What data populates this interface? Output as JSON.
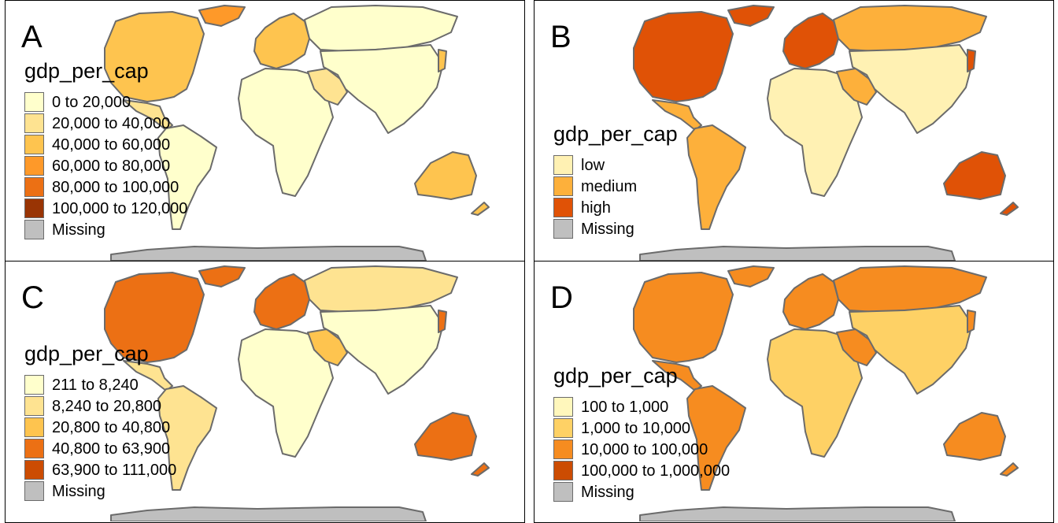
{
  "panels": [
    {
      "letter": "A",
      "legend": {
        "title": "gdp_per_cap",
        "items": [
          {
            "label": "0 to 20,000",
            "color": "#ffffcc"
          },
          {
            "label": "20,000 to 40,000",
            "color": "#fee391"
          },
          {
            "label": "40,000 to 60,000",
            "color": "#fec44f"
          },
          {
            "label": "60,000 to 80,000",
            "color": "#fe9929"
          },
          {
            "label": "80,000 to 100,000",
            "color": "#ec7014"
          },
          {
            "label": "100,000 to 120,000",
            "color": "#993404"
          },
          {
            "label": "Missing",
            "color": "#bfbfbf"
          }
        ]
      },
      "regions": {
        "north_america": "#fec44f",
        "greenland": "#fe9929",
        "mexico": "#fee391",
        "south_america": "#ffffcc",
        "europe": "#fec44f",
        "russia": "#ffffcc",
        "africa": "#ffffcc",
        "middle_east": "#fee391",
        "asia": "#ffffcc",
        "japan": "#fec44f",
        "australia": "#fec44f",
        "new_zealand": "#fec44f",
        "antarctica": "#bfbfbf"
      }
    },
    {
      "letter": "B",
      "legend": {
        "title": "gdp_per_cap",
        "items": [
          {
            "label": "low",
            "color": "#fff1b3"
          },
          {
            "label": "medium",
            "color": "#fdb03b"
          },
          {
            "label": "high",
            "color": "#e05206"
          },
          {
            "label": "Missing",
            "color": "#bfbfbf"
          }
        ]
      },
      "regions": {
        "north_america": "#e05206",
        "greenland": "#e05206",
        "mexico": "#fdb03b",
        "south_america": "#fdb03b",
        "europe": "#e05206",
        "russia": "#fdb03b",
        "africa": "#fff1b3",
        "middle_east": "#fdb03b",
        "asia": "#fff1b3",
        "japan": "#e05206",
        "australia": "#e05206",
        "new_zealand": "#e05206",
        "antarctica": "#bfbfbf"
      }
    },
    {
      "letter": "C",
      "legend": {
        "title": "gdp_per_cap",
        "items": [
          {
            "label": "211 to 8,240",
            "color": "#ffffcc"
          },
          {
            "label": "8,240 to 20,800",
            "color": "#fee391"
          },
          {
            "label": "20,800 to 40,800",
            "color": "#fec44f"
          },
          {
            "label": "40,800 to 63,900",
            "color": "#ec7014"
          },
          {
            "label": "63,900 to 111,000",
            "color": "#cc4c02"
          },
          {
            "label": "Missing",
            "color": "#bfbfbf"
          }
        ]
      },
      "regions": {
        "north_america": "#ec7014",
        "greenland": "#ec7014",
        "mexico": "#fee391",
        "south_america": "#fee391",
        "europe": "#ec7014",
        "russia": "#fee391",
        "africa": "#ffffcc",
        "middle_east": "#fec44f",
        "asia": "#ffffcc",
        "japan": "#ec7014",
        "australia": "#ec7014",
        "new_zealand": "#ec7014",
        "antarctica": "#bfbfbf"
      }
    },
    {
      "letter": "D",
      "legend": {
        "title": "gdp_per_cap",
        "items": [
          {
            "label": "100 to 1,000",
            "color": "#fff7bc"
          },
          {
            "label": "1,000 to 10,000",
            "color": "#fed165"
          },
          {
            "label": "10,000 to 100,000",
            "color": "#f68c20"
          },
          {
            "label": "100,000 to 1,000,000",
            "color": "#cc4c02"
          },
          {
            "label": "Missing",
            "color": "#bfbfbf"
          }
        ]
      },
      "regions": {
        "north_america": "#f68c20",
        "greenland": "#f68c20",
        "mexico": "#f68c20",
        "south_america": "#f68c20",
        "europe": "#f68c20",
        "russia": "#f68c20",
        "africa": "#fed165",
        "middle_east": "#f68c20",
        "asia": "#fed165",
        "japan": "#f68c20",
        "australia": "#f68c20",
        "new_zealand": "#f68c20",
        "antarctica": "#bfbfbf"
      }
    }
  ]
}
